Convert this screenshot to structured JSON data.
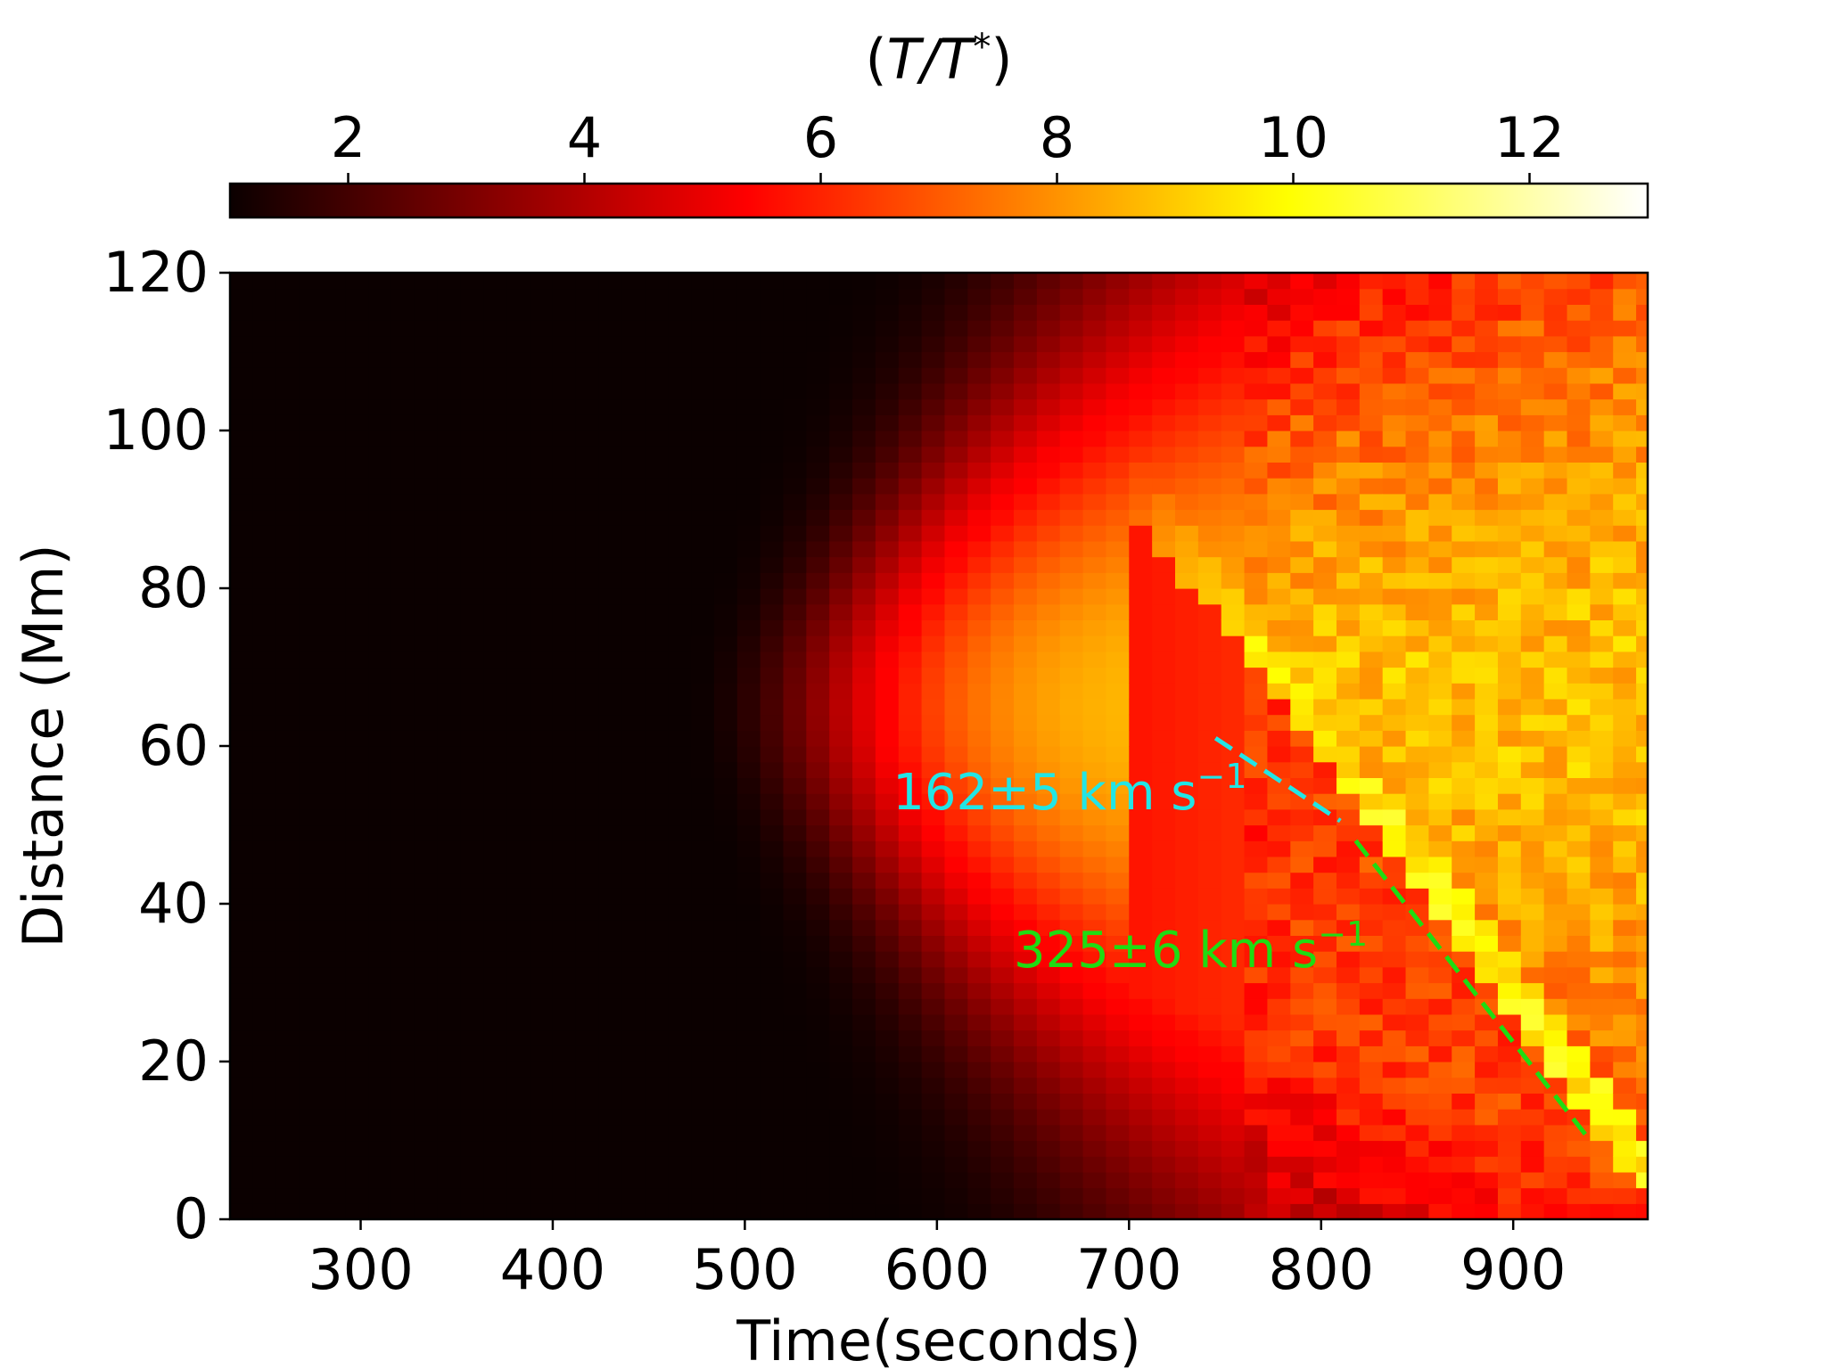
{
  "chart_data": {
    "type": "heatmap",
    "title": "",
    "xlabel": "Time(seconds)",
    "ylabel": "Distance (Mm)",
    "xlim": [
      232,
      970
    ],
    "ylim": [
      0,
      120
    ],
    "x_ticks": [
      300,
      400,
      500,
      600,
      700,
      800,
      900
    ],
    "y_ticks": [
      0,
      20,
      40,
      60,
      80,
      100,
      120
    ],
    "grid": false,
    "colormap": "hot",
    "colorbar": {
      "label_prefix": "(",
      "label_symbol": "T/T",
      "label_sup": "*",
      "label_suffix": ")",
      "position": "top",
      "range": [
        1,
        13
      ],
      "ticks": [
        2,
        4,
        6,
        8,
        10,
        12
      ]
    },
    "heatmap_model": {
      "time_bin_seconds": 12,
      "rows": 60,
      "ridge_center_mm": 65,
      "ridge_onset_s": 470,
      "front_start_s": 470,
      "front_speed_mm_per_s": 0.163,
      "plateau_value": 8.8
    },
    "annotations": [
      {
        "text": "162±5 km s",
        "sup": "−1",
        "color": "#22e5e5",
        "x": 577,
        "y": 52,
        "line": {
          "x": [
            745,
            810
          ],
          "y": [
            61,
            50.5
          ]
        }
      },
      {
        "text": "325±6 km s",
        "sup": "−1",
        "color": "#1fdc12",
        "x": 640,
        "y": 32,
        "line": {
          "x": [
            818,
            940
          ],
          "y": [
            48,
            10
          ]
        }
      }
    ]
  }
}
